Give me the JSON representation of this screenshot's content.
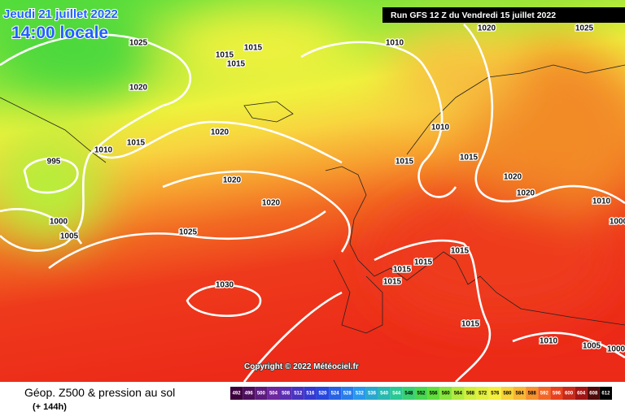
{
  "header": {
    "date": "Jeudi 21 juillet 2022",
    "time": "14:00 locale",
    "run": "Run GFS 12 Z du Vendredi 15 juillet 2022"
  },
  "isobar_labels": [
    "1025",
    "1015",
    "1015",
    "1015",
    "1010",
    "1020",
    "1025",
    "1020",
    "1020",
    "1015",
    "1010",
    "995",
    "1020",
    "1020",
    "1010",
    "1015",
    "1015",
    "1020",
    "1020",
    "1010",
    "1000",
    "1005",
    "1025",
    "1030",
    "1015",
    "1015",
    "1015",
    "1015",
    "1015",
    "1010",
    "1005",
    "1000",
    "1000"
  ],
  "copyright": "Copyright © 2022 Météociel.fr",
  "legend": {
    "title": "Géop. Z500 & pression au sol",
    "subtitle": "(+ 144h)",
    "scale": [
      492,
      496,
      500,
      504,
      508,
      512,
      516,
      520,
      524,
      528,
      532,
      536,
      540,
      544,
      548,
      552,
      556,
      560,
      564,
      568,
      572,
      576,
      580,
      584,
      588,
      592,
      596,
      600,
      604,
      608,
      612
    ]
  }
}
